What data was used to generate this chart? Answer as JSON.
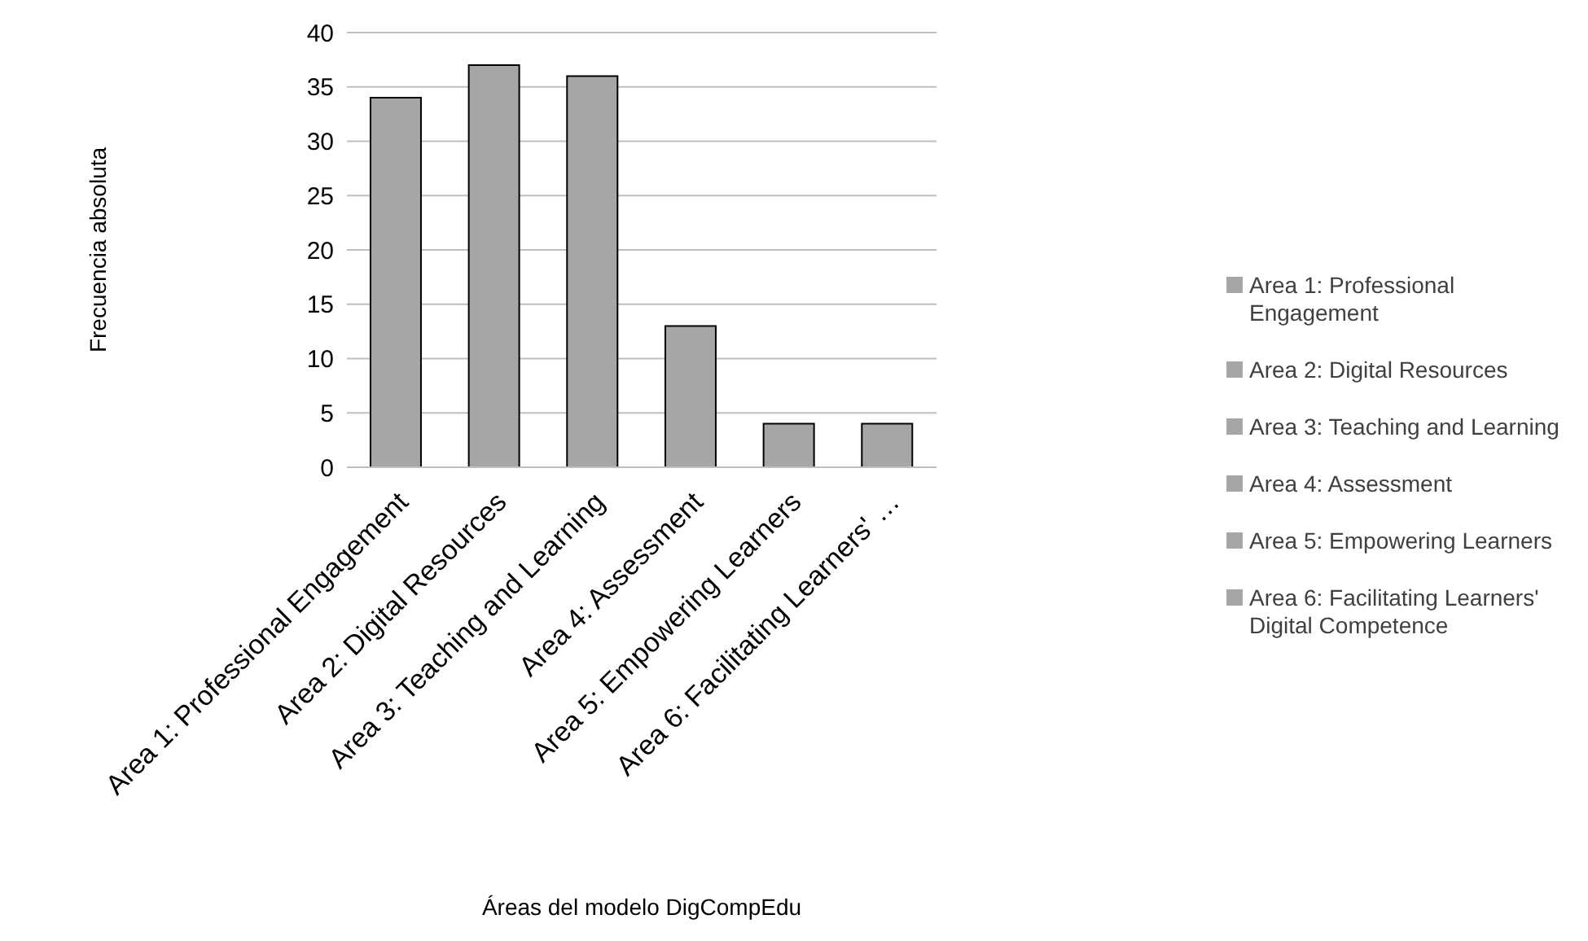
{
  "chart_data": {
    "type": "bar",
    "xlabel": "Áreas del modelo DigCompEdu",
    "ylabel": "Frecuencia absoluta",
    "categories": [
      "Area 1: Professional Engagement",
      "Area 2: Digital Resources",
      "Area 3: Teaching and Learning",
      "Area 4: Assessment",
      "Area 5: Empowering Learners",
      "Area 6: Facilitating Learners' …"
    ],
    "series": [
      {
        "name": "Area 1: Professional Engagement",
        "color": "#a6a6a6",
        "values": [
          34,
          null,
          null,
          null,
          null,
          null
        ]
      },
      {
        "name": "Area 2: Digital Resources",
        "color": "#a6a6a6",
        "values": [
          null,
          37,
          null,
          null,
          null,
          null
        ]
      },
      {
        "name": "Area 3: Teaching and Learning",
        "color": "#a6a6a6",
        "values": [
          null,
          null,
          36,
          null,
          null,
          null
        ]
      },
      {
        "name": "Area 4: Assessment",
        "color": "#a6a6a6",
        "values": [
          null,
          null,
          null,
          13,
          null,
          null
        ]
      },
      {
        "name": "Area 5: Empowering Learners",
        "color": "#a6a6a6",
        "values": [
          null,
          null,
          null,
          null,
          4,
          null
        ]
      },
      {
        "name": "Area 6: Facilitating Learners' Digital Competence",
        "color": "#a6a6a6",
        "values": [
          null,
          null,
          null,
          null,
          null,
          4
        ]
      }
    ],
    "ylim": [
      0,
      40
    ],
    "yticks": [
      0,
      5,
      10,
      15,
      20,
      25,
      30,
      35,
      40
    ],
    "grid": "y",
    "legend": "right"
  }
}
